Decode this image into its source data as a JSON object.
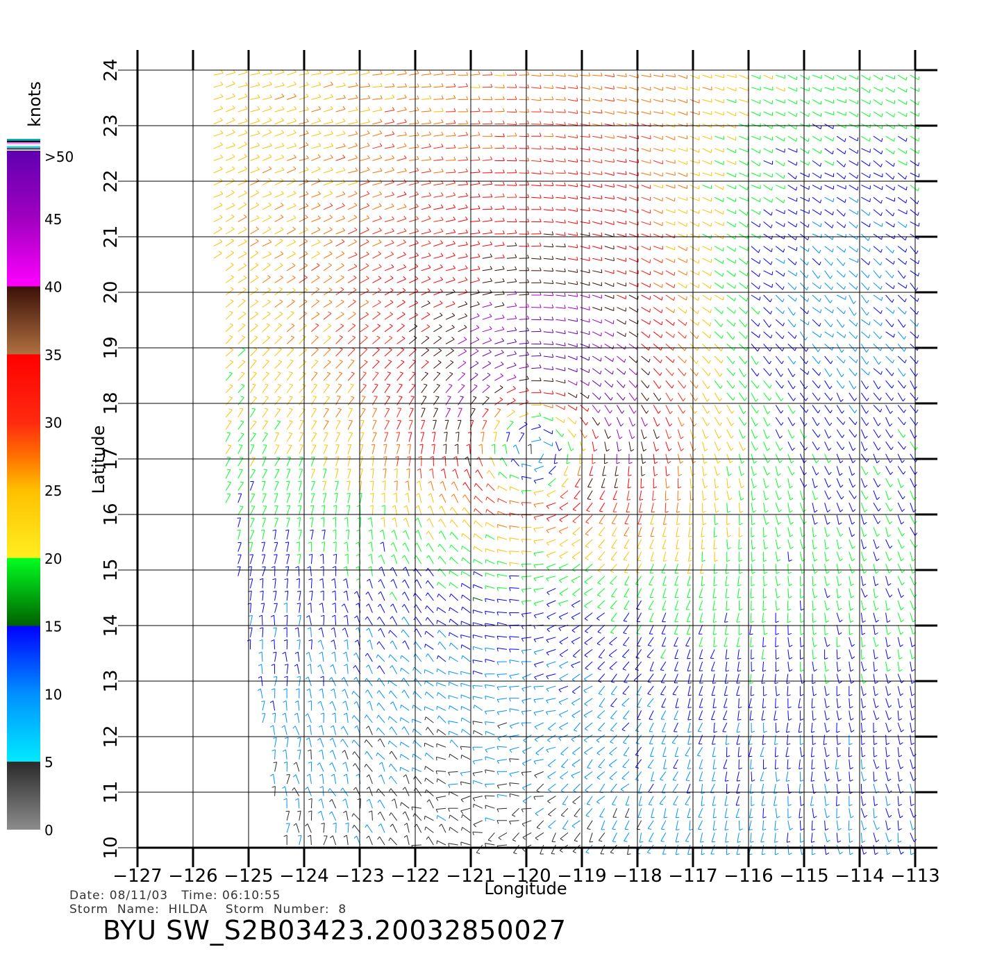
{
  "chart_data": {
    "type": "wind_barb_map",
    "title": "BYU SW_S2B03423.20032850027",
    "xlabel": "Longitude",
    "ylabel": "Latitude",
    "xlim": [
      -127,
      -113
    ],
    "ylim": [
      10,
      24
    ],
    "x_ticks": [
      "-127",
      "-126",
      "-125",
      "-124",
      "-123",
      "-122",
      "-121",
      "-120",
      "-119",
      "-118",
      "-117",
      "-116",
      "-115",
      "-114",
      "-113"
    ],
    "y_ticks": [
      "10",
      "11",
      "12",
      "13",
      "14",
      "15",
      "16",
      "17",
      "18",
      "19",
      "20",
      "21",
      "22",
      "23",
      "24"
    ],
    "grid": true,
    "storm_center_approx": {
      "lon": -119.8,
      "lat": 17.5
    },
    "colorbar": {
      "label": "knots",
      "tick_labels": [
        "0",
        "5",
        "10",
        "15",
        "20",
        "25",
        "30",
        "35",
        "40",
        "45",
        ">50"
      ],
      "stops": [
        {
          "value": 0,
          "color": "#8c8c8c"
        },
        {
          "value": 5,
          "color": "#2a2a2a"
        },
        {
          "value": 5.01,
          "color": "#00eaff"
        },
        {
          "value": 10,
          "color": "#0090ff"
        },
        {
          "value": 15,
          "color": "#0000ff"
        },
        {
          "value": 15.01,
          "color": "#006000"
        },
        {
          "value": 20,
          "color": "#00ff20"
        },
        {
          "value": 20.01,
          "color": "#ffee20"
        },
        {
          "value": 25,
          "color": "#ffc000"
        },
        {
          "value": 27.5,
          "color": "#ff7000"
        },
        {
          "value": 30,
          "color": "#ff2a10"
        },
        {
          "value": 35,
          "color": "#ff0000"
        },
        {
          "value": 35.01,
          "color": "#b07040"
        },
        {
          "value": 40,
          "color": "#3a1008"
        },
        {
          "value": 40.01,
          "color": "#ff00ff"
        },
        {
          "value": 45,
          "color": "#a000c0"
        },
        {
          "value": 50,
          "color": "#6000b0"
        }
      ]
    }
  },
  "footer": {
    "line1": "Date: 08/11/03   Time: 06:10:55",
    "line2": "Storm  Name:  HILDA    Storm  Number:  8",
    "product": "BYU  SW_S2B03423.20032850027"
  }
}
